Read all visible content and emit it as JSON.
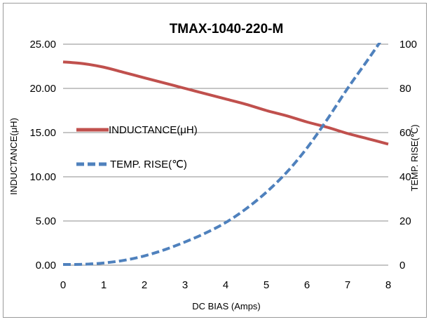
{
  "chart_data": {
    "type": "line",
    "title": "TMAX-1040-220-M",
    "xlabel": "DC BIAS  (Amps)",
    "ylabel": "INDUCTANCE(μH)",
    "y2label": "TEMP. RISE(℃)",
    "xlim": [
      0,
      8
    ],
    "ylim": [
      0,
      25
    ],
    "y2lim": [
      0,
      100
    ],
    "x_ticks": [
      "0",
      "1",
      "2",
      "3",
      "4",
      "5",
      "6",
      "7",
      "8"
    ],
    "y_ticks": [
      "0.00",
      "5.00",
      "10.00",
      "15.00",
      "20.00",
      "25.00"
    ],
    "y2_ticks": [
      "0",
      "20",
      "40",
      "60",
      "80",
      "100"
    ],
    "grid": "horizontal",
    "legend_position": "left-middle",
    "series": [
      {
        "name": "INDUCTANCE(μH)",
        "axis": "left",
        "style": "solid",
        "color": "#c0504d",
        "x": [
          0,
          0.5,
          1,
          1.5,
          2,
          2.5,
          3,
          3.5,
          4,
          4.5,
          5,
          5.5,
          6,
          6.5,
          7,
          7.5,
          8
        ],
        "values": [
          23.0,
          22.8,
          22.4,
          21.8,
          21.2,
          20.6,
          20.0,
          19.4,
          18.8,
          18.2,
          17.5,
          16.9,
          16.2,
          15.6,
          14.9,
          14.3,
          13.7
        ]
      },
      {
        "name": "TEMP. RISE(℃)",
        "axis": "right",
        "style": "dashed",
        "color": "#4f81bd",
        "x": [
          0,
          0.5,
          1,
          1.5,
          2,
          2.5,
          3,
          3.5,
          4,
          4.5,
          5,
          5.5,
          6,
          6.5,
          7,
          7.5,
          7.8
        ],
        "values": [
          0.3,
          0.4,
          1.0,
          2.2,
          4.2,
          7.0,
          10.5,
          14.5,
          19.3,
          25.5,
          33.0,
          42.0,
          53.0,
          66.0,
          80.0,
          93.0,
          101.0
        ]
      }
    ]
  }
}
